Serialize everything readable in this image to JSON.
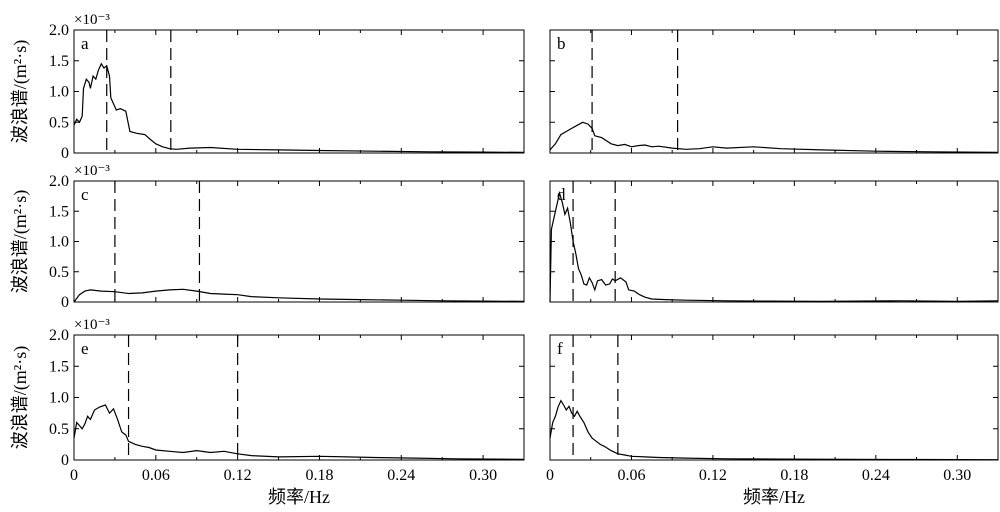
{
  "chart_data": {
    "type": "line",
    "layout": "3 rows x 2 columns of panels",
    "shared": {
      "ylabel": "波浪谱/(m²·s)",
      "xlabel": "频率/Hz",
      "xlim": [
        0,
        0.33
      ],
      "ylim": [
        0,
        2.0
      ],
      "scale_factor": "×10⁻³",
      "x_ticks": [
        "0",
        "0.06",
        "0.12",
        "0.18",
        "0.24",
        "0.30"
      ],
      "y_ticks": [
        "0",
        "0.5",
        "1.0",
        "1.5",
        "2.0"
      ],
      "grid": false,
      "line_color": "#000000",
      "vline_style": "dashed"
    },
    "panels": [
      {
        "label": "a",
        "vlines": [
          0.024,
          0.071
        ],
        "points": [
          [
            0.0,
            0.45
          ],
          [
            0.002,
            0.55
          ],
          [
            0.004,
            0.5
          ],
          [
            0.006,
            0.6
          ],
          [
            0.007,
            1.05
          ],
          [
            0.009,
            1.2
          ],
          [
            0.011,
            1.15
          ],
          [
            0.012,
            1.05
          ],
          [
            0.014,
            1.25
          ],
          [
            0.016,
            1.2
          ],
          [
            0.018,
            1.35
          ],
          [
            0.02,
            1.45
          ],
          [
            0.022,
            1.38
          ],
          [
            0.024,
            1.42
          ],
          [
            0.026,
            1.25
          ],
          [
            0.027,
            0.9
          ],
          [
            0.029,
            0.8
          ],
          [
            0.031,
            0.7
          ],
          [
            0.034,
            0.72
          ],
          [
            0.038,
            0.68
          ],
          [
            0.041,
            0.35
          ],
          [
            0.046,
            0.32
          ],
          [
            0.052,
            0.3
          ],
          [
            0.056,
            0.22
          ],
          [
            0.06,
            0.15
          ],
          [
            0.065,
            0.1
          ],
          [
            0.07,
            0.07
          ],
          [
            0.075,
            0.06
          ],
          [
            0.085,
            0.08
          ],
          [
            0.1,
            0.09
          ],
          [
            0.12,
            0.06
          ],
          [
            0.15,
            0.05
          ],
          [
            0.18,
            0.04
          ],
          [
            0.22,
            0.03
          ],
          [
            0.26,
            0.02
          ],
          [
            0.3,
            0.015
          ],
          [
            0.33,
            0.01
          ]
        ]
      },
      {
        "label": "b",
        "vlines": [
          0.031,
          0.094
        ],
        "points": [
          [
            0.0,
            0.05
          ],
          [
            0.004,
            0.15
          ],
          [
            0.008,
            0.3
          ],
          [
            0.012,
            0.35
          ],
          [
            0.016,
            0.4
          ],
          [
            0.02,
            0.45
          ],
          [
            0.024,
            0.5
          ],
          [
            0.028,
            0.47
          ],
          [
            0.031,
            0.4
          ],
          [
            0.033,
            0.28
          ],
          [
            0.038,
            0.25
          ],
          [
            0.045,
            0.15
          ],
          [
            0.05,
            0.12
          ],
          [
            0.055,
            0.14
          ],
          [
            0.06,
            0.1
          ],
          [
            0.065,
            0.12
          ],
          [
            0.07,
            0.13
          ],
          [
            0.075,
            0.1
          ],
          [
            0.08,
            0.11
          ],
          [
            0.09,
            0.08
          ],
          [
            0.1,
            0.06
          ],
          [
            0.11,
            0.07
          ],
          [
            0.12,
            0.1
          ],
          [
            0.13,
            0.08
          ],
          [
            0.15,
            0.1
          ],
          [
            0.17,
            0.07
          ],
          [
            0.2,
            0.05
          ],
          [
            0.24,
            0.03
          ],
          [
            0.28,
            0.02
          ],
          [
            0.33,
            0.01
          ]
        ]
      },
      {
        "label": "c",
        "vlines": [
          0.03,
          0.092
        ],
        "points": [
          [
            0.0,
            0.0
          ],
          [
            0.004,
            0.12
          ],
          [
            0.008,
            0.18
          ],
          [
            0.012,
            0.2
          ],
          [
            0.02,
            0.18
          ],
          [
            0.03,
            0.17
          ],
          [
            0.04,
            0.14
          ],
          [
            0.05,
            0.15
          ],
          [
            0.06,
            0.18
          ],
          [
            0.07,
            0.2
          ],
          [
            0.08,
            0.21
          ],
          [
            0.09,
            0.18
          ],
          [
            0.1,
            0.14
          ],
          [
            0.11,
            0.13
          ],
          [
            0.12,
            0.12
          ],
          [
            0.13,
            0.09
          ],
          [
            0.15,
            0.07
          ],
          [
            0.18,
            0.05
          ],
          [
            0.21,
            0.04
          ],
          [
            0.24,
            0.03
          ],
          [
            0.27,
            0.02
          ],
          [
            0.3,
            0.015
          ],
          [
            0.33,
            0.01
          ]
        ]
      },
      {
        "label": "d",
        "vlines": [
          0.017,
          0.048
        ],
        "points": [
          [
            0.0,
            0.0
          ],
          [
            0.001,
            1.2
          ],
          [
            0.003,
            1.4
          ],
          [
            0.005,
            1.6
          ],
          [
            0.007,
            1.8
          ],
          [
            0.009,
            1.65
          ],
          [
            0.011,
            1.45
          ],
          [
            0.013,
            1.55
          ],
          [
            0.015,
            1.3
          ],
          [
            0.017,
            1.0
          ],
          [
            0.019,
            0.8
          ],
          [
            0.021,
            0.55
          ],
          [
            0.023,
            0.45
          ],
          [
            0.025,
            0.3
          ],
          [
            0.027,
            0.28
          ],
          [
            0.029,
            0.4
          ],
          [
            0.031,
            0.32
          ],
          [
            0.033,
            0.2
          ],
          [
            0.035,
            0.35
          ],
          [
            0.038,
            0.37
          ],
          [
            0.041,
            0.28
          ],
          [
            0.044,
            0.3
          ],
          [
            0.046,
            0.38
          ],
          [
            0.048,
            0.35
          ],
          [
            0.052,
            0.4
          ],
          [
            0.056,
            0.33
          ],
          [
            0.058,
            0.2
          ],
          [
            0.062,
            0.18
          ],
          [
            0.066,
            0.12
          ],
          [
            0.07,
            0.08
          ],
          [
            0.075,
            0.05
          ],
          [
            0.085,
            0.04
          ],
          [
            0.1,
            0.03
          ],
          [
            0.13,
            0.02
          ],
          [
            0.16,
            0.015
          ],
          [
            0.2,
            0.01
          ],
          [
            0.26,
            0.02
          ],
          [
            0.3,
            0.01
          ],
          [
            0.33,
            0.02
          ]
        ]
      },
      {
        "label": "e",
        "vlines": [
          0.04,
          0.12
        ],
        "points": [
          [
            0.0,
            0.35
          ],
          [
            0.002,
            0.6
          ],
          [
            0.004,
            0.55
          ],
          [
            0.006,
            0.5
          ],
          [
            0.008,
            0.58
          ],
          [
            0.01,
            0.7
          ],
          [
            0.012,
            0.65
          ],
          [
            0.015,
            0.8
          ],
          [
            0.019,
            0.85
          ],
          [
            0.023,
            0.88
          ],
          [
            0.026,
            0.75
          ],
          [
            0.029,
            0.82
          ],
          [
            0.032,
            0.65
          ],
          [
            0.035,
            0.45
          ],
          [
            0.038,
            0.4
          ],
          [
            0.04,
            0.3
          ],
          [
            0.045,
            0.25
          ],
          [
            0.05,
            0.22
          ],
          [
            0.055,
            0.2
          ],
          [
            0.06,
            0.16
          ],
          [
            0.07,
            0.14
          ],
          [
            0.08,
            0.12
          ],
          [
            0.09,
            0.15
          ],
          [
            0.1,
            0.12
          ],
          [
            0.11,
            0.14
          ],
          [
            0.12,
            0.1
          ],
          [
            0.13,
            0.07
          ],
          [
            0.15,
            0.05
          ],
          [
            0.18,
            0.06
          ],
          [
            0.2,
            0.05
          ],
          [
            0.22,
            0.04
          ],
          [
            0.25,
            0.03
          ],
          [
            0.28,
            0.02
          ],
          [
            0.33,
            0.01
          ]
        ]
      },
      {
        "label": "f",
        "vlines": [
          0.017,
          0.05
        ],
        "points": [
          [
            0.0,
            0.35
          ],
          [
            0.002,
            0.6
          ],
          [
            0.004,
            0.7
          ],
          [
            0.006,
            0.85
          ],
          [
            0.008,
            0.95
          ],
          [
            0.01,
            0.88
          ],
          [
            0.012,
            0.8
          ],
          [
            0.014,
            0.86
          ],
          [
            0.016,
            0.75
          ],
          [
            0.018,
            0.7
          ],
          [
            0.02,
            0.78
          ],
          [
            0.022,
            0.7
          ],
          [
            0.025,
            0.6
          ],
          [
            0.028,
            0.45
          ],
          [
            0.031,
            0.35
          ],
          [
            0.034,
            0.3
          ],
          [
            0.037,
            0.25
          ],
          [
            0.04,
            0.22
          ],
          [
            0.045,
            0.15
          ],
          [
            0.05,
            0.1
          ],
          [
            0.055,
            0.08
          ],
          [
            0.06,
            0.06
          ],
          [
            0.07,
            0.05
          ],
          [
            0.08,
            0.04
          ],
          [
            0.1,
            0.03
          ],
          [
            0.13,
            0.02
          ],
          [
            0.17,
            0.015
          ],
          [
            0.22,
            0.01
          ],
          [
            0.27,
            0.008
          ],
          [
            0.33,
            0.005
          ]
        ]
      }
    ]
  }
}
